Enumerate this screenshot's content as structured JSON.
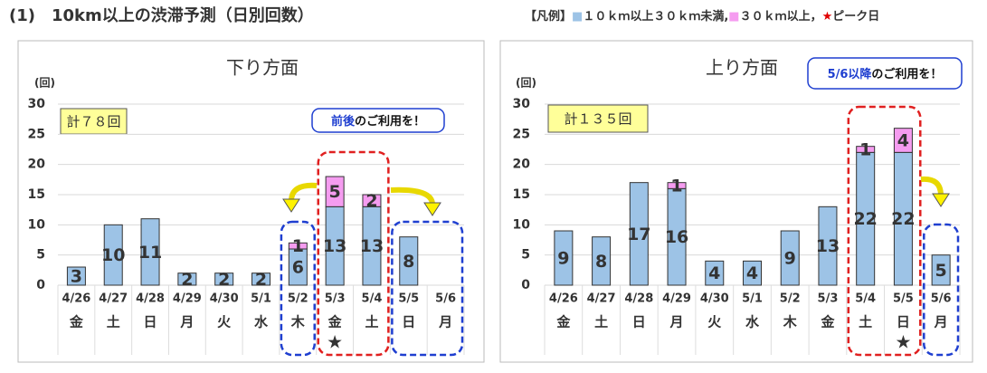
{
  "page_title": "(1)　10km以上の渋滞予測（日別回数）",
  "legend": {
    "prefix": "【凡例】",
    "separators": [
      ",",
      "，"
    ],
    "peak_symbol": "★",
    "peak_label": "ピーク日"
  },
  "chart_data": [
    {
      "type": "bar",
      "stacked": true,
      "title": "下り方面",
      "total_label": "計７８回",
      "y_unit": "(回)",
      "categories": [
        "4/26",
        "4/27",
        "4/28",
        "4/29",
        "4/30",
        "5/1",
        "5/2",
        "5/3",
        "5/4",
        "5/5",
        "5/6"
      ],
      "weekdays": [
        "金",
        "土",
        "日",
        "月",
        "火",
        "水",
        "木",
        "金",
        "土",
        "日",
        "月"
      ],
      "category_colors": [
        "#333333",
        "#0070c0",
        "#e00000",
        "#e00000",
        "#333333",
        "#333333",
        "#333333",
        "#e00000",
        "#e00000",
        "#e00000",
        "#e00000"
      ],
      "series": [
        {
          "name": "１０ｋｍ以上３０ｋｍ未満",
          "color": "#9dc3e6",
          "values": [
            3,
            10,
            11,
            2,
            2,
            2,
            6,
            13,
            13,
            8,
            null
          ]
        },
        {
          "name": "３０ｋｍ以上",
          "color": "#f59cf0",
          "values": [
            null,
            null,
            null,
            null,
            null,
            null,
            1,
            5,
            2,
            null,
            null
          ]
        }
      ],
      "ylim": [
        0,
        30
      ],
      "yticks": [
        0,
        5,
        10,
        15,
        20,
        25,
        30
      ],
      "grid": true,
      "peak_category": "5/3",
      "annotation": [
        "前後",
        "のご利用を！"
      ]
    },
    {
      "type": "bar",
      "stacked": true,
      "title": "上り方面",
      "total_label": "計１３５回",
      "y_unit": "(回)",
      "categories": [
        "4/26",
        "4/27",
        "4/28",
        "4/29",
        "4/30",
        "5/1",
        "5/2",
        "5/3",
        "5/4",
        "5/5",
        "5/6"
      ],
      "weekdays": [
        "金",
        "土",
        "日",
        "月",
        "火",
        "水",
        "木",
        "金",
        "土",
        "日",
        "月"
      ],
      "category_colors": [
        "#333333",
        "#0070c0",
        "#e00000",
        "#e00000",
        "#333333",
        "#333333",
        "#333333",
        "#e00000",
        "#e00000",
        "#e00000",
        "#e00000"
      ],
      "series": [
        {
          "name": "１０ｋｍ以上３０ｋｍ未満",
          "color": "#9dc3e6",
          "values": [
            9,
            8,
            17,
            16,
            4,
            4,
            9,
            13,
            22,
            22,
            5
          ]
        },
        {
          "name": "３０ｋｍ以上",
          "color": "#f59cf0",
          "values": [
            null,
            null,
            null,
            1,
            null,
            null,
            null,
            null,
            1,
            4,
            null
          ]
        }
      ],
      "ylim": [
        0,
        30
      ],
      "yticks": [
        0,
        5,
        10,
        15,
        20,
        25,
        30
      ],
      "grid": true,
      "peak_category": "5/5",
      "annotation": [
        "5/6以降",
        "のご利用を！"
      ]
    }
  ]
}
